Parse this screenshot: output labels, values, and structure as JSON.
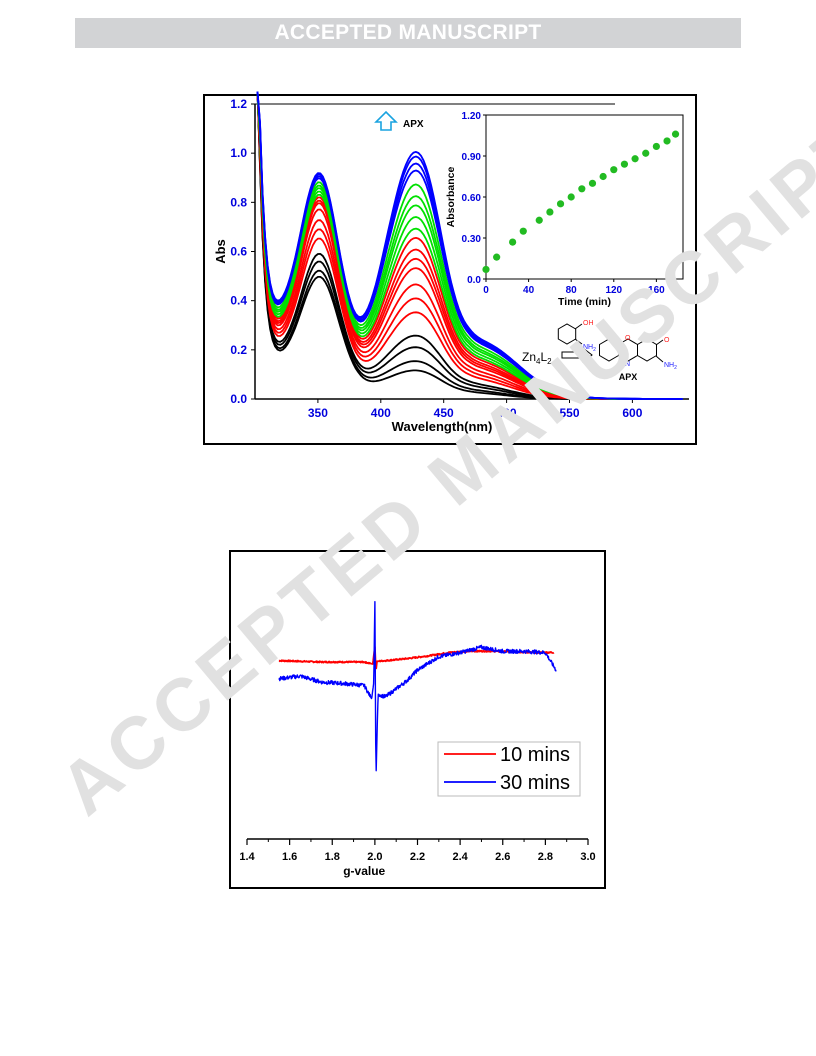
{
  "banner": {
    "text": "ACCEPTED MANUSCRIPT"
  },
  "watermark": {
    "text": "ACCEPTED MANUSCRIPT"
  },
  "figure_uv": {
    "chart_data": {
      "type": "line",
      "xlabel": "Wavelength(nm)",
      "ylabel": "Abs",
      "xlim": [
        300,
        645
      ],
      "ylim": [
        0,
        1.2
      ],
      "x_ticks": [
        350,
        400,
        450,
        500,
        550,
        600
      ],
      "y_ticks": [
        0.0,
        0.2,
        0.4,
        0.6,
        0.8,
        1.0,
        1.2
      ],
      "annotation": "APX",
      "series_groups": [
        {
          "color": "#000000",
          "peak_abs_at_415nm": [
            0.12,
            0.16,
            0.22,
            0.27
          ]
        },
        {
          "color": "#ff0000",
          "peak_abs_at_415nm": [
            0.37,
            0.43,
            0.49,
            0.56,
            0.6,
            0.64,
            0.69
          ]
        },
        {
          "color": "#00e000",
          "peak_abs_at_415nm": [
            0.73,
            0.78,
            0.83,
            0.87,
            0.92
          ]
        },
        {
          "color": "#0000ff",
          "peak_abs_at_415nm": [
            0.98,
            1.01,
            1.04,
            1.06
          ]
        }
      ]
    },
    "inset": {
      "chart_data": {
        "type": "scatter",
        "xlabel": "Time (min)",
        "ylabel": "Absorbance",
        "xlim": [
          0,
          185
        ],
        "ylim": [
          0,
          1.2
        ],
        "x_ticks": [
          0,
          40,
          80,
          120,
          160
        ],
        "y_ticks": [
          "0.0",
          "0.30",
          "0.60",
          "0.90",
          "1.20"
        ],
        "x": [
          0,
          10,
          25,
          35,
          50,
          60,
          70,
          80,
          90,
          100,
          110,
          120,
          130,
          140,
          150,
          160,
          170,
          178
        ],
        "values": [
          0.07,
          0.16,
          0.27,
          0.35,
          0.43,
          0.49,
          0.55,
          0.6,
          0.66,
          0.7,
          0.75,
          0.8,
          0.84,
          0.88,
          0.92,
          0.97,
          1.01,
          1.06
        ],
        "marker_color": "#22bb22"
      }
    },
    "scheme": {
      "catalyst_main": "Zn",
      "catalyst_sub1": "4",
      "catalyst_mid": "L",
      "catalyst_sub2": "2",
      "reactant_oh": "OH",
      "reactant_nh2": "NH",
      "reactant_nh2_sub": "2",
      "product_o": "O",
      "product_n": "N",
      "product_nh2": "NH",
      "product_nh2_sub": "2",
      "product_label": "APX"
    }
  },
  "figure_epr": {
    "chart_data": {
      "type": "line",
      "xlabel": "g-value",
      "xlim": [
        1.4,
        3.0
      ],
      "x_ticks": [
        "1.4",
        "1.6",
        "1.8",
        "2.0",
        "2.2",
        "2.4",
        "2.6",
        "2.8",
        "3.0"
      ],
      "series": [
        {
          "name": "10 mins",
          "color": "#ff0000",
          "x": [
            1.55,
            1.65,
            1.75,
            1.85,
            1.95,
            1.99,
            2.0,
            2.005,
            2.01,
            2.05,
            2.15,
            2.25,
            2.35,
            2.45,
            2.55,
            2.65,
            2.75,
            2.84
          ],
          "values": [
            0.02,
            0.01,
            0.0,
            0.0,
            0.0,
            -0.03,
            0.22,
            -0.12,
            0.01,
            0.02,
            0.05,
            0.09,
            0.14,
            0.16,
            0.16,
            0.15,
            0.14,
            0.14
          ]
        },
        {
          "name": "30 mins",
          "color": "#0000ff",
          "x": [
            1.55,
            1.65,
            1.75,
            1.85,
            1.95,
            1.985,
            1.995,
            2.0,
            2.005,
            2.015,
            2.05,
            2.1,
            2.15,
            2.2,
            2.3,
            2.4,
            2.5,
            2.6,
            2.7,
            2.8,
            2.85
          ],
          "values": [
            -0.25,
            -0.21,
            -0.3,
            -0.32,
            -0.35,
            -0.55,
            -0.3,
            0.9,
            -1.75,
            -0.48,
            -0.52,
            -0.4,
            -0.28,
            -0.12,
            0.08,
            0.14,
            0.22,
            0.16,
            0.16,
            0.14,
            -0.12
          ]
        }
      ]
    }
  }
}
